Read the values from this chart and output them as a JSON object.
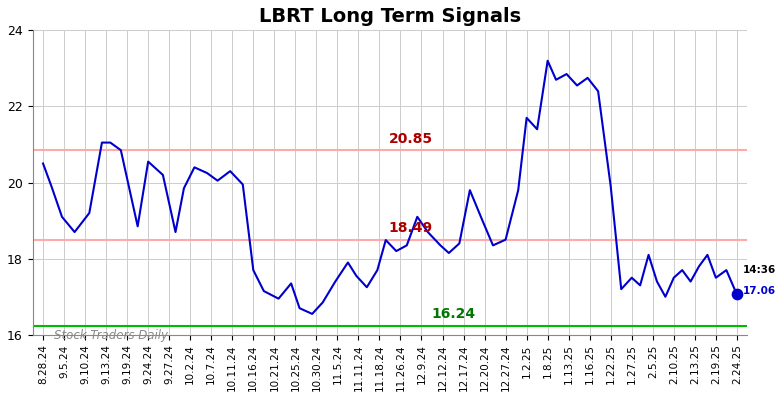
{
  "title": "LBRT Long Term Signals",
  "x_labels": [
    "8.28.24",
    "9.5.24",
    "9.10.24",
    "9.13.24",
    "9.19.24",
    "9.24.24",
    "9.27.24",
    "10.2.24",
    "10.7.24",
    "10.11.24",
    "10.16.24",
    "10.21.24",
    "10.25.24",
    "10.30.24",
    "11.5.24",
    "11.11.24",
    "11.18.24",
    "11.26.24",
    "12.9.24",
    "12.12.24",
    "12.17.24",
    "12.20.24",
    "12.27.24",
    "1.2.25",
    "1.8.25",
    "1.13.25",
    "1.16.25",
    "1.22.25",
    "1.27.25",
    "2.5.25",
    "2.10.25",
    "2.13.25",
    "2.19.25",
    "2.24.25"
  ],
  "line_color": "#0000cc",
  "hline1_value": 20.85,
  "hline1_color": "#ffaaaa",
  "hline2_value": 18.49,
  "hline2_color": "#ffaaaa",
  "hline3_value": 16.24,
  "hline3_color": "#00bb00",
  "annotation1_text": "20.85",
  "annotation1_color": "#aa0000",
  "annotation2_text": "18.49",
  "annotation2_color": "#aa0000",
  "annotation3_text": "16.24",
  "annotation3_color": "#007700",
  "watermark_text": "Stock Traders Daily",
  "watermark_color": "#888888",
  "ylim": [
    16.0,
    24.0
  ],
  "yticks": [
    16,
    18,
    20,
    22,
    24
  ],
  "background_color": "#ffffff",
  "grid_color": "#cccccc",
  "x_data": [
    0,
    0.4,
    0.9,
    1.5,
    2.2,
    2.8,
    3.2,
    3.7,
    4.5,
    5.0,
    5.7,
    6.3,
    6.7,
    7.2,
    7.8,
    8.3,
    8.9,
    9.5,
    10.0,
    10.5,
    11.2,
    11.8,
    12.2,
    12.8,
    13.3,
    13.9,
    14.5,
    14.9,
    15.4,
    15.9,
    16.3,
    16.8,
    17.3,
    17.8,
    18.3,
    18.9,
    19.3,
    19.8,
    20.3,
    20.9,
    21.4,
    22.0,
    22.6,
    23.0,
    23.5,
    24.0,
    24.4,
    24.9,
    25.4,
    25.9,
    26.4,
    27.0,
    27.5,
    28.0,
    28.4,
    28.8,
    29.2,
    29.6,
    30.0,
    30.4,
    30.8,
    31.2,
    31.6,
    32.0,
    32.5,
    33.0
  ],
  "y_data": [
    20.5,
    19.9,
    19.1,
    18.7,
    19.2,
    21.05,
    21.05,
    20.85,
    18.85,
    20.55,
    20.2,
    18.7,
    19.85,
    20.4,
    20.25,
    20.05,
    20.3,
    19.95,
    17.7,
    17.15,
    16.95,
    17.35,
    16.7,
    16.55,
    16.85,
    17.4,
    17.9,
    17.55,
    17.25,
    17.7,
    18.49,
    18.2,
    18.35,
    19.1,
    18.7,
    18.35,
    18.15,
    18.4,
    19.8,
    19.0,
    18.35,
    18.5,
    19.8,
    21.7,
    21.4,
    23.2,
    22.7,
    22.85,
    22.55,
    22.75,
    22.4,
    19.9,
    17.2,
    17.5,
    17.3,
    18.1,
    17.4,
    17.0,
    17.5,
    17.7,
    17.4,
    17.8,
    18.1,
    17.5,
    17.7,
    17.06
  ]
}
